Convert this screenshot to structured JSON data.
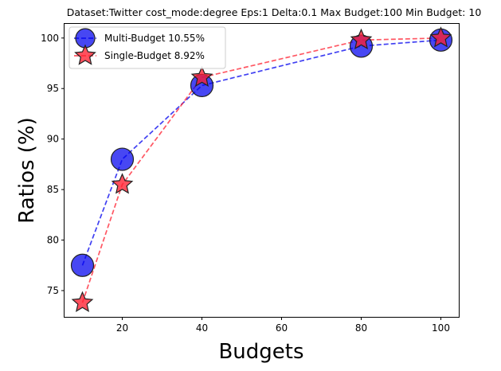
{
  "chart_data": {
    "type": "line",
    "title": "Dataset:Twitter cost_mode:degree Eps:1 Delta:0.1 Max Budget:100 Min Budget: 10",
    "xlabel": "Budgets",
    "ylabel": "Ratios (%)",
    "xlim": [
      5.5,
      104.5
    ],
    "ylim": [
      72.4,
      101.4
    ],
    "xticks": [
      20,
      40,
      60,
      80,
      100
    ],
    "yticks": [
      75,
      80,
      85,
      90,
      95,
      100
    ],
    "grid": false,
    "legend_position": "top-left",
    "series": [
      {
        "name": "Multi-Budget 10.55%",
        "marker": "circle",
        "color": "#0000ee",
        "x": [
          10,
          20,
          40,
          80,
          100
        ],
        "y": [
          77.5,
          88.0,
          95.3,
          99.2,
          99.8
        ]
      },
      {
        "name": "Single-Budget 8.92%",
        "marker": "star",
        "color": "#ff1f2f",
        "x": [
          10,
          20,
          40,
          80,
          100
        ],
        "y": [
          73.8,
          85.5,
          96.1,
          99.8,
          100.0
        ]
      }
    ]
  }
}
